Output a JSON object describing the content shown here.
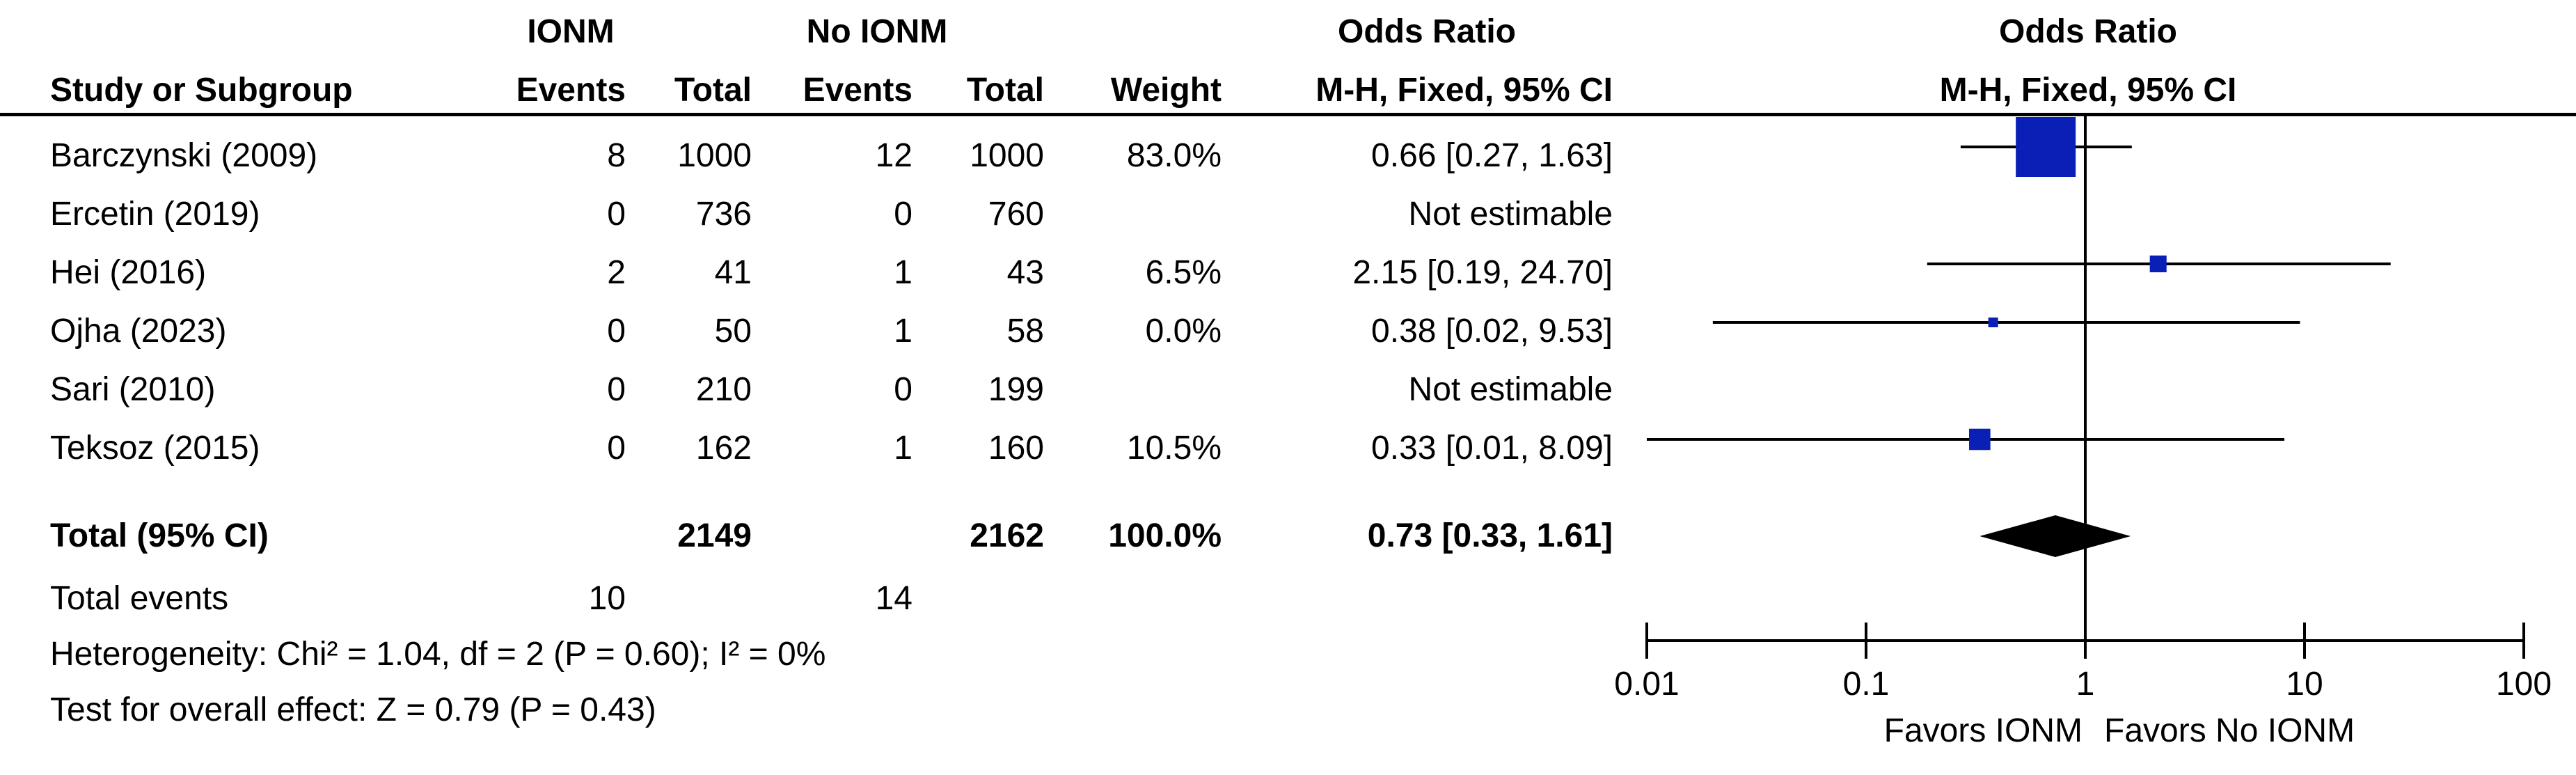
{
  "header": {
    "group1": "IONM",
    "group2": "No IONM",
    "or_table": "Odds Ratio",
    "or_plot": "Odds Ratio",
    "cols": {
      "study": "Study or Subgroup",
      "events1": "Events",
      "total1": "Total",
      "events2": "Events",
      "total2": "Total",
      "weight": "Weight",
      "method_table": "M-H, Fixed, 95% CI",
      "method_plot": "M-H, Fixed, 95% CI"
    }
  },
  "studies": [
    {
      "name": "Barczynski (2009)",
      "events1": "8",
      "total1": "1000",
      "events2": "12",
      "total2": "1000",
      "weight": "83.0%",
      "ci_text": "0.66 [0.27, 1.63]"
    },
    {
      "name": "Ercetin (2019)",
      "events1": "0",
      "total1": "736",
      "events2": "0",
      "total2": "760",
      "weight": "",
      "ci_text": "Not estimable"
    },
    {
      "name": "Hei (2016)",
      "events1": "2",
      "total1": "41",
      "events2": "1",
      "total2": "43",
      "weight": "6.5%",
      "ci_text": "2.15 [0.19, 24.70]"
    },
    {
      "name": "Ojha (2023)",
      "events1": "0",
      "total1": "50",
      "events2": "1",
      "total2": "58",
      "weight": "0.0%",
      "ci_text": "0.38 [0.02, 9.53]"
    },
    {
      "name": "Sari (2010)",
      "events1": "0",
      "total1": "210",
      "events2": "0",
      "total2": "199",
      "weight": "",
      "ci_text": "Not estimable"
    },
    {
      "name": "Teksoz (2015)",
      "events1": "0",
      "total1": "162",
      "events2": "1",
      "total2": "160",
      "weight": "10.5%",
      "ci_text": "0.33 [0.01, 8.09]"
    }
  ],
  "total": {
    "label": "Total (95% CI)",
    "total1": "2149",
    "total2": "2162",
    "weight": "100.0%",
    "ci_text": "0.73 [0.33, 1.61]"
  },
  "total_events": {
    "label": "Total events",
    "events1": "10",
    "events2": "14"
  },
  "heterogeneity": "Heterogeneity: Chi² = 1.04, df = 2 (P = 0.60); I² = 0%",
  "overall_effect": "Test for overall effect: Z = 0.79 (P = 0.43)",
  "axis": {
    "favors_left": "Favors IONM",
    "favors_right": "Favors No IONM"
  },
  "chart_data": {
    "type": "forest",
    "scale": "log",
    "xlim": [
      0.01,
      100
    ],
    "ticks": [
      0.01,
      0.1,
      1,
      10,
      100
    ],
    "tick_labels": [
      "0.01",
      "0.1",
      "1",
      "10",
      "100"
    ],
    "reference_line": 1,
    "colors": {
      "study_marker": "#0a1fb5",
      "total_marker": "#000000"
    },
    "studies": [
      {
        "name": "Barczynski (2009)",
        "or": 0.66,
        "lower": 0.27,
        "upper": 1.63,
        "weight": 83.0
      },
      {
        "name": "Ercetin (2019)",
        "or": null,
        "lower": null,
        "upper": null,
        "weight": null
      },
      {
        "name": "Hei (2016)",
        "or": 2.15,
        "lower": 0.19,
        "upper": 24.7,
        "weight": 6.5
      },
      {
        "name": "Ojha (2023)",
        "or": 0.38,
        "lower": 0.02,
        "upper": 9.53,
        "weight": 0.0
      },
      {
        "name": "Sari (2010)",
        "or": null,
        "lower": null,
        "upper": null,
        "weight": null
      },
      {
        "name": "Teksoz (2015)",
        "or": 0.33,
        "lower": 0.01,
        "upper": 8.09,
        "weight": 10.5
      }
    ],
    "total": {
      "name": "Total (95% CI)",
      "or": 0.73,
      "lower": 0.33,
      "upper": 1.61
    }
  }
}
